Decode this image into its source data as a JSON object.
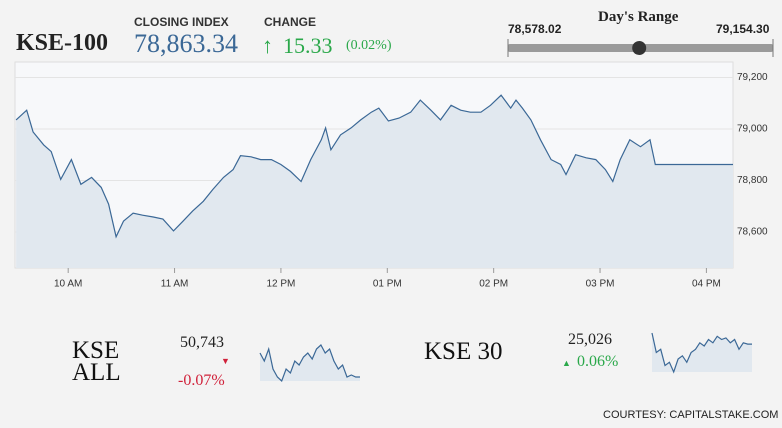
{
  "symbol": "KSE-100",
  "closing_label": "CLOSING INDEX",
  "closing_index": {
    "value": 78863.34,
    "label": "78,863.34"
  },
  "change_label": "CHANGE",
  "change": "15.33",
  "change_pct": "(0.02%)",
  "day_range": {
    "title": "Day's Range",
    "low": {
      "value": 78578.02,
      "label": "78,578.02"
    },
    "high": {
      "value": 79154.3,
      "label": "79,154.30"
    }
  },
  "minis": [
    {
      "name": "KSE ALL",
      "price": "50,743",
      "change": "-0.07%"
    },
    {
      "name": "KSE 30",
      "price": "25,026",
      "change": "0.06%"
    }
  ],
  "courtesy": "COURTESY: CAPITALSTAKE.COM",
  "chart_data": [
    {
      "type": "line",
      "color": "#3b6896",
      "fill": "#e1e8ef",
      "grid": true,
      "x": [
        9.51,
        9.61,
        9.67,
        9.77,
        9.84,
        9.93,
        10.03,
        10.12,
        10.22,
        10.31,
        10.38,
        10.45,
        10.52,
        10.61,
        10.7,
        10.8,
        10.89,
        10.99,
        11.08,
        11.17,
        11.27,
        11.36,
        11.46,
        11.55,
        11.62,
        11.72,
        11.81,
        11.91,
        12.0,
        12.09,
        12.19,
        12.28,
        12.38,
        12.42,
        12.47,
        12.56,
        12.66,
        12.75,
        12.85,
        12.92,
        13.01,
        13.11,
        13.22,
        13.31,
        13.41,
        13.5,
        13.6,
        13.69,
        13.78,
        13.88,
        13.97,
        14.07,
        14.16,
        14.21,
        14.27,
        14.35,
        14.44,
        14.54,
        14.63,
        14.68,
        14.77,
        14.87,
        14.96,
        15.05,
        15.12,
        15.19,
        15.28,
        15.38,
        15.47,
        15.52,
        16.25
      ],
      "values": [
        79035,
        79073,
        78988,
        78938,
        78912,
        78804,
        78881,
        78785,
        78812,
        78773,
        78708,
        78581,
        78642,
        78673,
        78665,
        78658,
        78650,
        78604,
        78642,
        78681,
        78719,
        78765,
        78812,
        78842,
        78896,
        78892,
        78881,
        78881,
        78862,
        78835,
        78796,
        78881,
        78958,
        79004,
        78919,
        78977,
        79004,
        79035,
        79065,
        79081,
        79031,
        79042,
        79065,
        79112,
        79073,
        79035,
        79092,
        79073,
        79065,
        79065,
        79092,
        79131,
        79081,
        79112,
        79081,
        79035,
        78958,
        78881,
        78862,
        78823,
        78900,
        78888,
        78881,
        78842,
        78796,
        78881,
        78958,
        78931,
        78958,
        78862,
        78862
      ],
      "xlim": [
        9.5,
        16.25
      ],
      "xticks": [
        {
          "value": 10,
          "label": "10 AM"
        },
        {
          "value": 11,
          "label": "11 AM"
        },
        {
          "value": 12,
          "label": "12 PM"
        },
        {
          "value": 13,
          "label": "01 PM"
        },
        {
          "value": 14,
          "label": "02 PM"
        },
        {
          "value": 15,
          "label": "03 PM"
        },
        {
          "value": 16,
          "label": "04 PM"
        }
      ],
      "ylim": [
        78460,
        79260
      ],
      "yticks": [
        {
          "value": 78600,
          "label": "78,600"
        },
        {
          "value": 78800,
          "label": "78,800"
        },
        {
          "value": 79000,
          "label": "79,000"
        },
        {
          "value": 79200,
          "label": "79,200"
        }
      ]
    },
    {
      "type": "sparkline",
      "color": "#3b6896",
      "fill": "#e1e8ef",
      "values": [
        50760,
        50740,
        50770,
        50720,
        50700,
        50690,
        50720,
        50710,
        50740,
        50730,
        50750,
        50760,
        50745,
        50770,
        50780,
        50760,
        50770,
        50740,
        50720,
        50730,
        50700,
        50705,
        50700,
        50700
      ]
    },
    {
      "type": "sparkline",
      "color": "#3b6896",
      "fill": "#e1e8ef",
      "values": [
        25060,
        25000,
        25010,
        24960,
        24970,
        24940,
        24980,
        24990,
        24970,
        25000,
        25010,
        25030,
        25020,
        25040,
        25030,
        25050,
        25040,
        25045,
        25030,
        25040,
        25010,
        25030,
        25026,
        25026
      ]
    }
  ]
}
